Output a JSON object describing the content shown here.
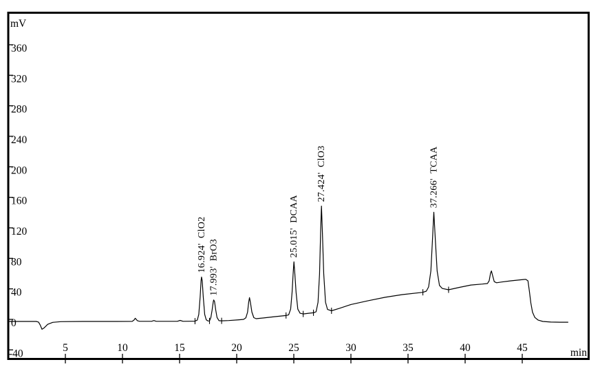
{
  "window": {
    "background": "#ffffff",
    "frame_color": "#000000",
    "trace_color": "#000000"
  },
  "chart_data": {
    "type": "line",
    "title": "",
    "ylabel": "mV",
    "xlabel": "min",
    "y_ticks": [
      360,
      320,
      280,
      240,
      200,
      160,
      120,
      80,
      40,
      0,
      -40
    ],
    "x_ticks": [
      5,
      10,
      15,
      20,
      25,
      30,
      35,
      40,
      45
    ],
    "xlim": [
      0,
      50.9
    ],
    "ylim": [
      -47,
      407
    ],
    "grid": false,
    "legend": false,
    "line_color": "#000000",
    "background": "#ffffff",
    "peaks": [
      {
        "rt": "16.924'",
        "name": "ClO2",
        "rt_min": 16.924,
        "apex_mv": 60
      },
      {
        "rt": "17.993'",
        "name": "BrO3",
        "rt_min": 17.993,
        "apex_mv": 30
      },
      {
        "rt": "25.015'",
        "name": "DCAA",
        "rt_min": 25.015,
        "apex_mv": 80
      },
      {
        "rt": "27.424'",
        "name": "ClO3",
        "rt_min": 27.424,
        "apex_mv": 153
      },
      {
        "rt": "37.266'",
        "name": "TCAA",
        "rt_min": 37.266,
        "apex_mv": 145
      }
    ],
    "unlabeled_peaks": [
      {
        "rt_min": 3.0,
        "apex_mv": -8.5
      },
      {
        "rt_min": 11.1,
        "apex_mv": 6
      },
      {
        "rt_min": 21.1,
        "apex_mv": 33
      },
      {
        "rt_min": 42.3,
        "apex_mv": 68
      }
    ],
    "integration_marks": [
      [
        16.35,
        2.2
      ],
      [
        17.62,
        2.5
      ],
      [
        18.68,
        2.6
      ],
      [
        24.32,
        9.6
      ],
      [
        25.82,
        11.6
      ],
      [
        26.72,
        13.2
      ],
      [
        28.3,
        15.8
      ],
      [
        36.3,
        40.0
      ],
      [
        38.55,
        43.3
      ]
    ],
    "trace": [
      [
        0.05,
        1.8
      ],
      [
        2.45,
        1.8
      ],
      [
        2.65,
        1.0
      ],
      [
        2.8,
        -3
      ],
      [
        2.95,
        -8.5
      ],
      [
        3.15,
        -6.5
      ],
      [
        3.45,
        -2
      ],
      [
        3.9,
        0.6
      ],
      [
        4.6,
        1.5
      ],
      [
        6.5,
        1.8
      ],
      [
        9.5,
        1.8
      ],
      [
        10.85,
        1.9
      ],
      [
        11.0,
        3.5
      ],
      [
        11.12,
        6
      ],
      [
        11.3,
        2.8
      ],
      [
        11.5,
        2.0
      ],
      [
        12.55,
        2.0
      ],
      [
        12.75,
        3.0
      ],
      [
        12.95,
        2.0
      ],
      [
        14.8,
        2.0
      ],
      [
        15.05,
        3.2
      ],
      [
        15.3,
        2.0
      ],
      [
        16.0,
        2.1
      ],
      [
        16.35,
        2.2
      ],
      [
        16.55,
        3.5
      ],
      [
        16.68,
        11
      ],
      [
        16.8,
        34
      ],
      [
        16.88,
        55
      ],
      [
        16.92,
        60
      ],
      [
        16.98,
        55
      ],
      [
        17.07,
        34
      ],
      [
        17.2,
        11
      ],
      [
        17.33,
        4
      ],
      [
        17.48,
        2.4
      ],
      [
        17.62,
        2.5
      ],
      [
        17.74,
        7
      ],
      [
        17.85,
        17
      ],
      [
        17.95,
        28
      ],
      [
        17.99,
        30
      ],
      [
        18.06,
        28
      ],
      [
        18.16,
        17
      ],
      [
        18.28,
        7
      ],
      [
        18.45,
        2.8
      ],
      [
        18.68,
        2.6
      ],
      [
        19.3,
        3.0
      ],
      [
        20.2,
        4.0
      ],
      [
        20.6,
        4.5
      ],
      [
        20.8,
        6.5
      ],
      [
        20.95,
        14
      ],
      [
        21.05,
        27
      ],
      [
        21.12,
        33
      ],
      [
        21.2,
        27
      ],
      [
        21.33,
        14
      ],
      [
        21.5,
        6.8
      ],
      [
        21.7,
        5.4
      ],
      [
        22.3,
        6.3
      ],
      [
        23.3,
        8.0
      ],
      [
        24.32,
        9.6
      ],
      [
        24.55,
        10.5
      ],
      [
        24.72,
        18
      ],
      [
        24.85,
        40
      ],
      [
        24.95,
        67
      ],
      [
        25.01,
        80
      ],
      [
        25.08,
        67
      ],
      [
        25.2,
        40
      ],
      [
        25.35,
        18
      ],
      [
        25.55,
        12.5
      ],
      [
        25.82,
        11.6
      ],
      [
        26.3,
        12.5
      ],
      [
        26.72,
        13.2
      ],
      [
        26.95,
        14.5
      ],
      [
        27.12,
        27
      ],
      [
        27.25,
        64
      ],
      [
        27.35,
        120
      ],
      [
        27.42,
        153
      ],
      [
        27.5,
        120
      ],
      [
        27.62,
        64
      ],
      [
        27.78,
        27
      ],
      [
        27.95,
        17.5
      ],
      [
        28.3,
        15.8
      ],
      [
        29.0,
        19
      ],
      [
        30.0,
        24
      ],
      [
        31.5,
        29
      ],
      [
        33.0,
        33.5
      ],
      [
        34.5,
        37
      ],
      [
        36.3,
        40
      ],
      [
        36.6,
        41.5
      ],
      [
        36.8,
        47
      ],
      [
        37.0,
        68
      ],
      [
        37.15,
        112
      ],
      [
        37.26,
        145
      ],
      [
        37.38,
        112
      ],
      [
        37.55,
        68
      ],
      [
        37.75,
        49
      ],
      [
        38.0,
        45
      ],
      [
        38.55,
        43.3
      ],
      [
        39.5,
        46.5
      ],
      [
        40.5,
        49.5
      ],
      [
        41.5,
        50.8
      ],
      [
        41.95,
        51.5
      ],
      [
        42.1,
        55
      ],
      [
        42.22,
        65
      ],
      [
        42.3,
        68
      ],
      [
        42.42,
        61
      ],
      [
        42.55,
        54
      ],
      [
        42.75,
        52.5
      ],
      [
        43.2,
        53.5
      ],
      [
        44.0,
        55
      ],
      [
        44.8,
        56.3
      ],
      [
        45.3,
        57
      ],
      [
        45.5,
        55
      ],
      [
        45.62,
        42
      ],
      [
        45.75,
        26
      ],
      [
        45.9,
        14
      ],
      [
        46.1,
        7
      ],
      [
        46.4,
        3.5
      ],
      [
        46.8,
        1.8
      ],
      [
        47.5,
        1.0
      ],
      [
        48.3,
        0.8
      ],
      [
        49.0,
        0.8
      ]
    ]
  }
}
